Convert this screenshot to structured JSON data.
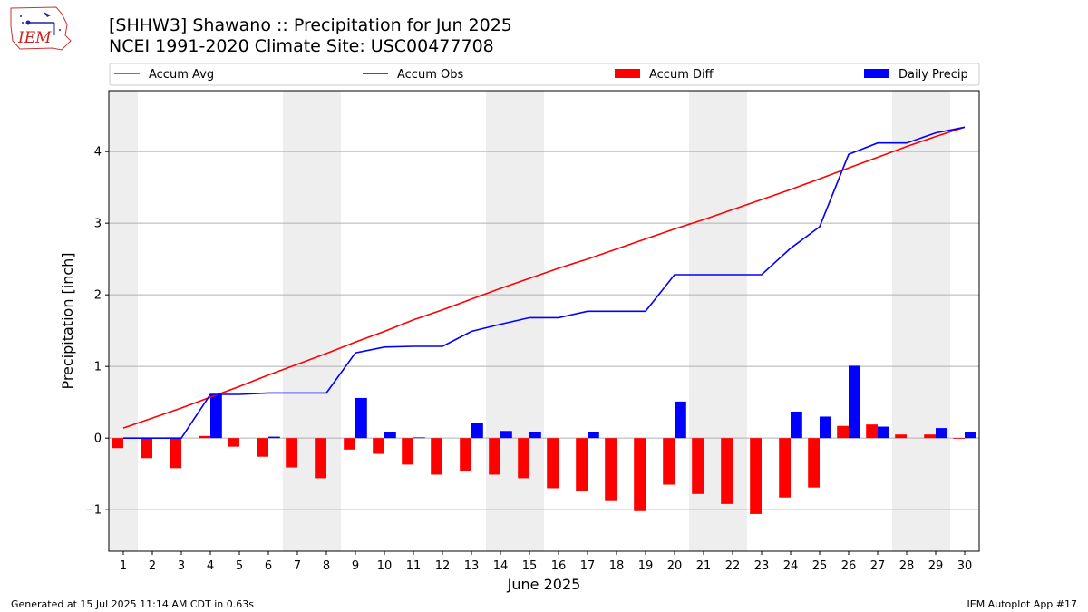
{
  "page": {
    "title_line1": "[SHHW3] Shawano :: Precipitation for Jun 2025",
    "title_line2": "NCEI 1991-2020 Climate Site: USC00477708",
    "footer_left": "Generated at 15 Jul 2025 11:14 AM CDT in 0.63s",
    "footer_right": "IEM Autoplot App #17",
    "logo_text": "IEM"
  },
  "chart_data": {
    "type": "bar",
    "xlabel": "June 2025",
    "ylabel": "Precipitation [inch]",
    "xlim": [
      0.5,
      30.5
    ],
    "ylim": [
      -1.58,
      4.85
    ],
    "yticks": [
      -1,
      0,
      1,
      2,
      3,
      4
    ],
    "grid": "y",
    "legend_position": "top, single row above plot",
    "weekend_shading": [
      [
        0.5,
        1.5
      ],
      [
        6.5,
        8.5
      ],
      [
        13.5,
        15.5
      ],
      [
        20.5,
        22.5
      ],
      [
        27.5,
        29.5
      ]
    ],
    "days": [
      1,
      2,
      3,
      4,
      5,
      6,
      7,
      8,
      9,
      10,
      11,
      12,
      13,
      14,
      15,
      16,
      17,
      18,
      19,
      20,
      21,
      22,
      23,
      24,
      25,
      26,
      27,
      28,
      29,
      30
    ],
    "series": [
      {
        "name": "Accum Avg",
        "kind": "line",
        "color": "#ff0000",
        "values": [
          0.14,
          0.28,
          0.42,
          0.57,
          0.72,
          0.88,
          1.03,
          1.18,
          1.34,
          1.49,
          1.65,
          1.79,
          1.94,
          2.09,
          2.23,
          2.37,
          2.5,
          2.64,
          2.78,
          2.92,
          3.05,
          3.19,
          3.33,
          3.47,
          3.62,
          3.77,
          3.92,
          4.07,
          4.21,
          4.34
        ]
      },
      {
        "name": "Accum Obs",
        "kind": "line",
        "color": "#0000ff",
        "values": [
          0.0,
          0.0,
          0.0,
          0.61,
          0.61,
          0.63,
          0.63,
          0.63,
          1.19,
          1.27,
          1.28,
          1.28,
          1.49,
          1.59,
          1.68,
          1.68,
          1.77,
          1.77,
          1.77,
          2.28,
          2.28,
          2.28,
          2.28,
          2.65,
          2.95,
          3.96,
          4.12,
          4.12,
          4.26,
          4.34
        ]
      },
      {
        "name": "Accum Diff",
        "kind": "bar",
        "color": "#ff0000",
        "values": [
          -0.14,
          -0.28,
          -0.42,
          0.03,
          -0.12,
          -0.26,
          -0.41,
          -0.56,
          -0.16,
          -0.22,
          -0.37,
          -0.51,
          -0.46,
          -0.51,
          -0.56,
          -0.7,
          -0.74,
          -0.88,
          -1.02,
          -0.65,
          -0.78,
          -0.92,
          -1.06,
          -0.83,
          -0.69,
          0.17,
          0.19,
          0.05,
          0.05,
          -0.01
        ]
      },
      {
        "name": "Daily Precip",
        "kind": "bar",
        "color": "#0000ff",
        "values": [
          0.0,
          0.0,
          0.0,
          0.61,
          0.0,
          0.02,
          0.0,
          0.0,
          0.56,
          0.08,
          0.01,
          0.0,
          0.21,
          0.1,
          0.09,
          0.0,
          0.09,
          0.0,
          0.0,
          0.51,
          0.0,
          0.0,
          0.0,
          0.37,
          0.3,
          1.01,
          0.16,
          0.0,
          0.14,
          0.08
        ]
      }
    ]
  }
}
